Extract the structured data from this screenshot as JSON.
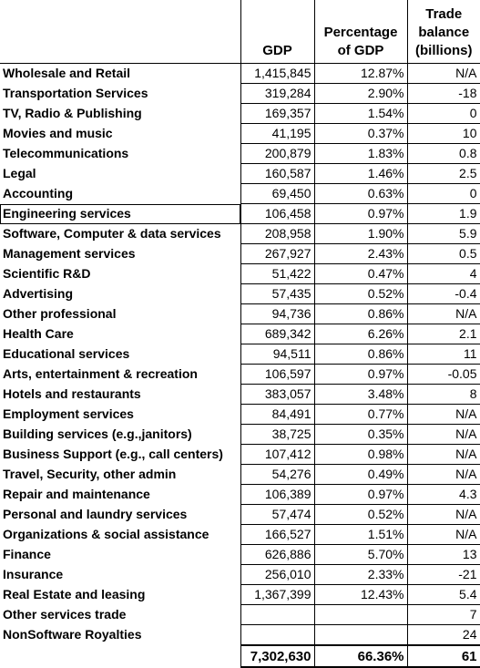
{
  "headers": {
    "gdp": "GDP",
    "pct": "Percentage of GDP",
    "trade": "Trade balance (billions)"
  },
  "rows": [
    {
      "label": "Wholesale and Retail",
      "gdp": "1,415,845",
      "pct": "12.87%",
      "trade": "N/A"
    },
    {
      "label": "Transportation Services",
      "gdp": "319,284",
      "pct": "2.90%",
      "trade": "-18"
    },
    {
      "label": "TV, Radio & Publishing",
      "gdp": "169,357",
      "pct": "1.54%",
      "trade": "0"
    },
    {
      "label": "Movies and music",
      "gdp": "41,195",
      "pct": "0.37%",
      "trade": "10"
    },
    {
      "label": "Telecommunications",
      "gdp": "200,879",
      "pct": "1.83%",
      "trade": "0.8"
    },
    {
      "label": "Legal",
      "gdp": "160,587",
      "pct": "1.46%",
      "trade": "2.5"
    },
    {
      "label": "Accounting",
      "gdp": "69,450",
      "pct": "0.63%",
      "trade": "0"
    },
    {
      "label": "Engineering services",
      "gdp": "106,458",
      "pct": "0.97%",
      "trade": "1.9"
    },
    {
      "label": "Software, Computer & data services",
      "gdp": "208,958",
      "pct": "1.90%",
      "trade": "5.9"
    },
    {
      "label": "Management  services",
      "gdp": "267,927",
      "pct": "2.43%",
      "trade": "0.5"
    },
    {
      "label": "Scientific R&D",
      "gdp": "51,422",
      "pct": "0.47%",
      "trade": "4"
    },
    {
      "label": "Advertising",
      "gdp": "57,435",
      "pct": "0.52%",
      "trade": "-0.4"
    },
    {
      "label": "Other professional",
      "gdp": "94,736",
      "pct": "0.86%",
      "trade": "N/A"
    },
    {
      "label": "Health Care",
      "gdp": "689,342",
      "pct": "6.26%",
      "trade": "2.1"
    },
    {
      "label": "Educational services",
      "gdp": "94,511",
      "pct": "0.86%",
      "trade": "11"
    },
    {
      "label": "Arts, entertainment & recreation",
      "gdp": "106,597",
      "pct": "0.97%",
      "trade": "-0.05"
    },
    {
      "label": "Hotels and restaurants",
      "gdp": "383,057",
      "pct": "3.48%",
      "trade": "8"
    },
    {
      "label": "Employment services",
      "gdp": "84,491",
      "pct": "0.77%",
      "trade": "N/A"
    },
    {
      "label": "Building services (e.g.,janitors)",
      "gdp": "38,725",
      "pct": "0.35%",
      "trade": "N/A"
    },
    {
      "label": "Business Support (e.g., call centers)",
      "gdp": "107,412",
      "pct": "0.98%",
      "trade": "N/A"
    },
    {
      "label": "Travel, Security, other admin",
      "gdp": "54,276",
      "pct": "0.49%",
      "trade": "N/A"
    },
    {
      "label": "Repair and maintenance",
      "gdp": "106,389",
      "pct": "0.97%",
      "trade": "4.3"
    },
    {
      "label": "Personal and laundry services",
      "gdp": "57,474",
      "pct": "0.52%",
      "trade": "N/A"
    },
    {
      "label": "Organizations & social assistance",
      "gdp": "166,527",
      "pct": "1.51%",
      "trade": "N/A"
    },
    {
      "label": "Finance",
      "gdp": "626,886",
      "pct": "5.70%",
      "trade": "13"
    },
    {
      "label": "Insurance",
      "gdp": "256,010",
      "pct": "2.33%",
      "trade": "-21"
    },
    {
      "label": "Real Estate and leasing",
      "gdp": "1,367,399",
      "pct": "12.43%",
      "trade": "5.4"
    },
    {
      "label": "Other services trade",
      "gdp": "",
      "pct": "",
      "trade": "7"
    },
    {
      "label": "NonSoftware Royalties",
      "gdp": "",
      "pct": "",
      "trade": "24"
    }
  ],
  "totals": {
    "label": "",
    "gdp": "7,302,630",
    "pct": "66.36%",
    "trade": "61"
  }
}
